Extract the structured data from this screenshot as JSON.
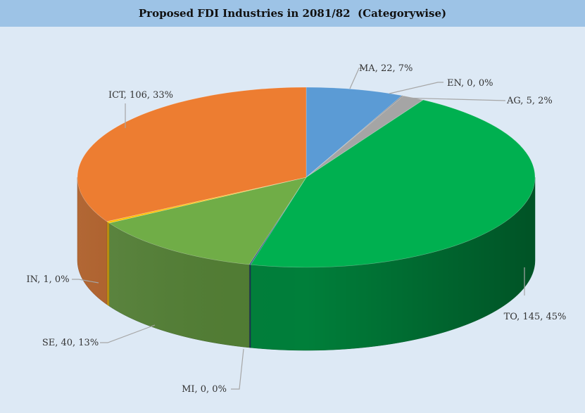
{
  "title": "Proposed FDI Industries in 2081/82  (Categorywise)",
  "chart_data": {
    "type": "pie",
    "title": "Proposed FDI Industries in 2081/82  (Categorywise)",
    "categories": [
      "MA",
      "EN",
      "AG",
      "TO",
      "MI",
      "SE",
      "IN",
      "ICT"
    ],
    "values": [
      22,
      0,
      5,
      145,
      0,
      40,
      1,
      106
    ],
    "percentages": [
      7,
      0,
      2,
      45,
      0,
      13,
      0,
      33
    ],
    "labels": [
      "MA, 22, 7%",
      "EN, 0, 0%",
      "AG, 5, 2%",
      "TO, 145, 45%",
      "MI, 0, 0%",
      "SE, 40, 13%",
      "IN, 1, 0%",
      "ICT, 106, 33%"
    ],
    "colors": [
      "#5b9bd5",
      "#7f7f7f",
      "#a5a5a5",
      "#00b050",
      "#264478",
      "#70ad47",
      "#ffc000",
      "#ed7d31"
    ],
    "style": "3d-pie",
    "legend": "none"
  }
}
